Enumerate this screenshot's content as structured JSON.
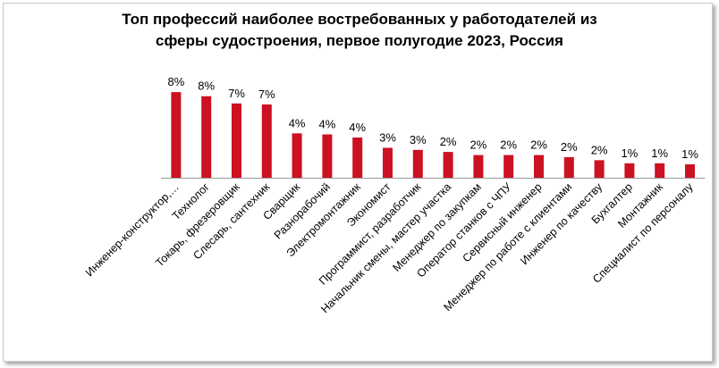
{
  "chart_data": {
    "type": "bar",
    "title_lines": [
      "Топ профессий наиболее востребованных у работодателей из",
      "сферы судостроения, первое полугодие 2023, Россия"
    ],
    "categories": [
      "Инженер-конструктор,…",
      "Технолог",
      "Токарь, фрезеровщик",
      "Слесарь, сантехник",
      "Сварщик",
      "Разнорабочий",
      "Электромонтажник",
      "Экономист",
      "Программист, разработчик",
      "Начальник смены, мастер участка",
      "Менеджер по закупкам",
      "Оператор станков с ЧПУ",
      "Сервисный инженер",
      "Менеджер по работе с клиентами",
      "Инженер по качеству",
      "Бухгалтер",
      "Монтажник",
      "Специалист по персоналу"
    ],
    "values": [
      8.3,
      7.9,
      7.2,
      7.1,
      4.3,
      4.2,
      3.9,
      2.9,
      2.7,
      2.5,
      2.2,
      2.2,
      2.2,
      2.0,
      1.7,
      1.4,
      1.4,
      1.3
    ],
    "data_labels": [
      "8%",
      "8%",
      "7%",
      "7%",
      "4%",
      "4%",
      "4%",
      "3%",
      "3%",
      "2%",
      "2%",
      "2%",
      "2%",
      "2%",
      "2%",
      "1%",
      "1%",
      "1%"
    ],
    "ylim": [
      0,
      9
    ],
    "colors": {
      "bar": "#cc1122",
      "axis": "#9a9a9a",
      "text": "#000000"
    },
    "grid": false,
    "legend": "none"
  }
}
